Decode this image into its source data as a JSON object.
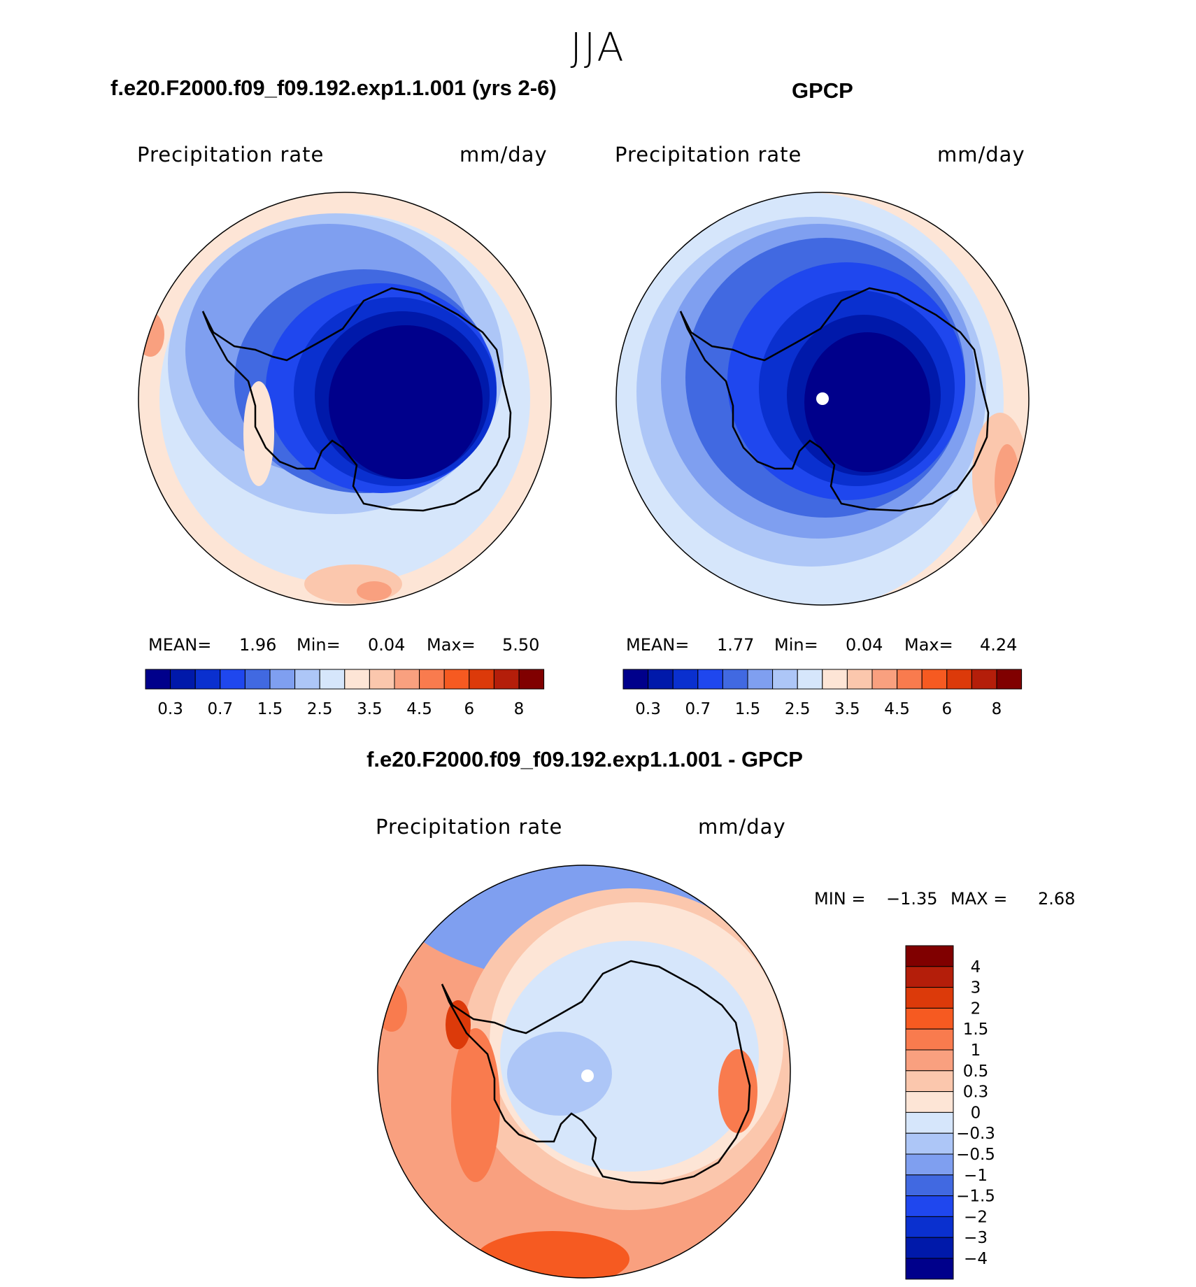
{
  "figure": {
    "season": "JJA"
  },
  "panels": [
    {
      "title": "f.e20.F2000.f09_f09.192.exp1.1.001 (yrs 2-6)",
      "variable": "Precipitation rate",
      "units": "mm/day",
      "stats": {
        "mean_label": "MEAN=",
        "mean": "1.96",
        "min_label": "Min=",
        "min": "0.04",
        "max_label": "Max=",
        "max": "5.50"
      }
    },
    {
      "title": "GPCP",
      "variable": "Precipitation rate",
      "units": "mm/day",
      "stats": {
        "mean_label": "MEAN=",
        "mean": "1.77",
        "min_label": "Min=",
        "min": "0.04",
        "max_label": "Max=",
        "max": "4.24"
      }
    },
    {
      "title": "f.e20.F2000.f09_f09.192.exp1.1.001 - GPCP",
      "variable": "Precipitation rate",
      "units": "mm/day",
      "stats": {
        "min_label": "MIN =",
        "min": "−1.35",
        "max_label": "MAX =",
        "max": "2.68"
      }
    }
  ],
  "colorbars": {
    "mean_fields": {
      "colors": [
        "#00008b",
        "#0019aa",
        "#0a30cf",
        "#1f47ee",
        "#4169e1",
        "#7f9ff0",
        "#adc6f7",
        "#d6e6fb",
        "#fde5d6",
        "#fbc7ad",
        "#f9a07f",
        "#f97b4e",
        "#f65a21",
        "#dc3a0a",
        "#b41e0a",
        "#800000"
      ],
      "tick_labels": [
        "0.3",
        "0.7",
        "1.5",
        "2.5",
        "3.5",
        "4.5",
        "6",
        "8"
      ]
    },
    "difference": {
      "colors": [
        "#800000",
        "#b41e0a",
        "#dc3a0a",
        "#f65a21",
        "#f97b4e",
        "#f9a07f",
        "#fbc7ad",
        "#fde5d6",
        "#d6e6fb",
        "#adc6f7",
        "#7f9ff0",
        "#4169e1",
        "#1f47ee",
        "#0a30cf",
        "#0019aa",
        "#00008b"
      ],
      "tick_labels": [
        "4",
        "3",
        "2",
        "1.5",
        "1",
        "0.5",
        "0.3",
        "0",
        "−0.3",
        "−0.5",
        "−1",
        "−1.5",
        "−2",
        "−3",
        "−4"
      ]
    }
  }
}
